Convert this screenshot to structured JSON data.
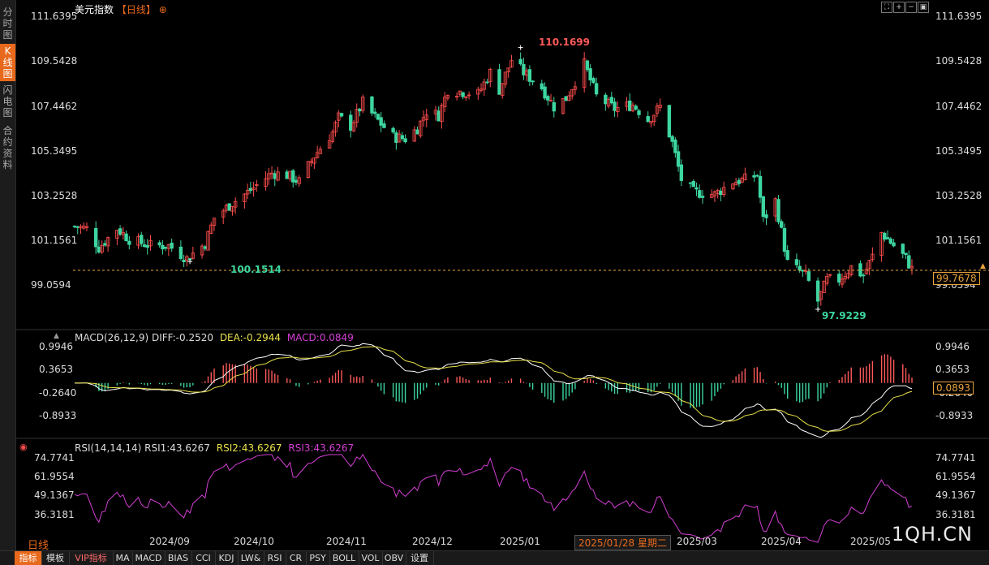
{
  "sidebar": {
    "tabs": [
      {
        "label": "分时图",
        "active": false
      },
      {
        "label": "K线图",
        "active": true
      },
      {
        "label": "闪电图",
        "active": false
      },
      {
        "label": "合约资料",
        "active": false
      }
    ]
  },
  "header": {
    "title": "美元指数",
    "period": "【日线】",
    "add_icon": "plus-circle-icon",
    "controls": [
      "expand-icon",
      "zoom-in-icon",
      "zoom-out-icon",
      "restore-icon"
    ]
  },
  "main_chart": {
    "y_labels": [
      "111.6395",
      "109.5428",
      "107.4462",
      "105.3495",
      "103.2528",
      "101.1561",
      "99.0594"
    ],
    "high_marker": "110.1699",
    "low_marker_1": "100.1514",
    "low_marker_2": "97.9229",
    "current_price": "99.7678",
    "colors": {
      "up": "#ff4d4d",
      "down": "#3dd6a0",
      "price_line": "#e8a33d",
      "bg": "#000000"
    }
  },
  "macd": {
    "name": "MACD(26,12,9)",
    "diff": "DIFF:-0.2520",
    "dea": "DEA:-0.2944",
    "macd": "MACD:0.0849",
    "y_labels": [
      "0.9946",
      "0.3653",
      "-0.2640",
      "-0.8933"
    ],
    "current": "0.0893"
  },
  "rsi": {
    "name": "RSI(14,14,14)",
    "rsi1": "RSI1:43.6267",
    "rsi2": "RSI2:43.6267",
    "rsi3": "RSI3:43.6267",
    "y_labels": [
      "74.7741",
      "61.9554",
      "49.1367",
      "36.3181"
    ]
  },
  "x_axis": {
    "period_label": "日线",
    "labels": [
      "2024/09",
      "2024/10",
      "2024/11",
      "2024/12",
      "2025/01",
      "2025/03",
      "2025/04",
      "2025/05"
    ],
    "cursor_date": "2025/01/28 星期二"
  },
  "toolbar": {
    "items": [
      "指标",
      "模板",
      "VIP指标",
      "MA",
      "MACD",
      "BIAS",
      "CCI",
      "KDJ",
      "LW&",
      "RSI",
      "CR",
      "PSY",
      "BOLL",
      "VOL",
      "OBV",
      "设置"
    ]
  },
  "watermark": "1QH.CN",
  "chart_data": {
    "type": "candlestick",
    "title": "美元指数",
    "anchors": [
      [
        "2024-08-19",
        101.8
      ],
      [
        "2024-08-23",
        101.7
      ],
      [
        "2024-08-27",
        100.8
      ],
      [
        "2024-09-02",
        101.7
      ],
      [
        "2024-09-06",
        101.2
      ],
      [
        "2024-09-13",
        100.9
      ],
      [
        "2024-09-19",
        100.9
      ],
      [
        "2024-09-25",
        100.3
      ],
      [
        "2024-10-01",
        101.0
      ],
      [
        "2024-10-04",
        102.2
      ],
      [
        "2024-10-10",
        102.9
      ],
      [
        "2024-10-16",
        103.5
      ],
      [
        "2024-10-23",
        104.3
      ],
      [
        "2024-10-28",
        104.2
      ],
      [
        "2024-11-01",
        103.9
      ],
      [
        "2024-11-06",
        105.1
      ],
      [
        "2024-11-12",
        106.2
      ],
      [
        "2024-11-14",
        106.9
      ],
      [
        "2024-11-18",
        106.5
      ],
      [
        "2024-11-22",
        107.6
      ],
      [
        "2024-11-26",
        106.9
      ],
      [
        "2024-12-02",
        106.0
      ],
      [
        "2024-12-06",
        105.9
      ],
      [
        "2024-12-10",
        106.4
      ],
      [
        "2024-12-13",
        107.2
      ],
      [
        "2024-12-17",
        107.0
      ],
      [
        "2024-12-20",
        108.2
      ],
      [
        "2024-12-30",
        108.0
      ],
      [
        "2025-01-03",
        109.0
      ],
      [
        "2025-01-06",
        108.2
      ],
      [
        "2025-01-10",
        109.6
      ],
      [
        "2025-01-14",
        109.0
      ],
      [
        "2025-01-20",
        108.3
      ],
      [
        "2025-01-24",
        107.4
      ],
      [
        "2025-01-28",
        107.8
      ],
      [
        "2025-02-03",
        109.4
      ],
      [
        "2025-02-07",
        107.9
      ],
      [
        "2025-02-13",
        107.3
      ],
      [
        "2025-02-19",
        107.5
      ],
      [
        "2025-02-24",
        106.8
      ],
      [
        "2025-02-28",
        107.4
      ],
      [
        "2025-03-04",
        105.7
      ],
      [
        "2025-03-07",
        104.0
      ],
      [
        "2025-03-11",
        103.4
      ],
      [
        "2025-03-18",
        103.3
      ],
      [
        "2025-03-24",
        103.9
      ],
      [
        "2025-03-28",
        104.0
      ],
      [
        "2025-04-01",
        104.2
      ],
      [
        "2025-04-03",
        102.1
      ],
      [
        "2025-04-07",
        103.0
      ],
      [
        "2025-04-11",
        100.1
      ],
      [
        "2025-04-17",
        99.5
      ],
      [
        "2025-04-21",
        98.3
      ],
      [
        "2025-04-24",
        99.3
      ],
      [
        "2025-04-28",
        99.3
      ],
      [
        "2025-05-02",
        99.9
      ],
      [
        "2025-05-06",
        99.5
      ],
      [
        "2025-05-09",
        100.4
      ],
      [
        "2025-05-12",
        101.5
      ],
      [
        "2025-05-16",
        100.9
      ],
      [
        "2025-05-20",
        100.3
      ],
      [
        "2025-05-22",
        99.8
      ]
    ],
    "y_range": [
      98.0,
      112.0
    ],
    "macd_range": [
      -1.4,
      1.1
    ],
    "rsi_range": [
      25,
      80
    ],
    "grid": false
  }
}
